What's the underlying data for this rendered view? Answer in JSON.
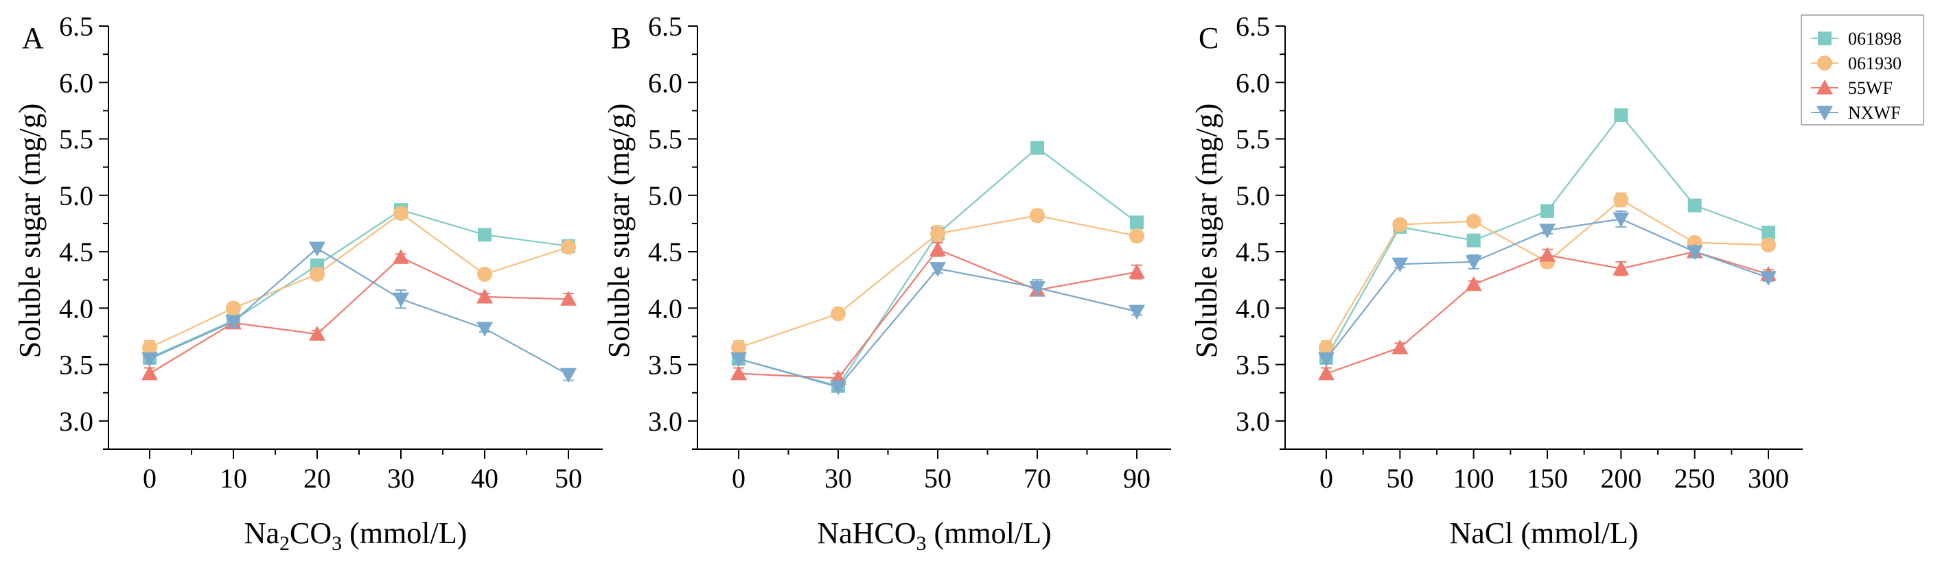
{
  "chart_data": [
    {
      "type": "line",
      "panel_label": "A",
      "xlabel": "Na2CO3 (mmol/L)",
      "xlabel_parts": {
        "pre": "Na",
        "sub": "2",
        "mid": "CO",
        "sub2": "3",
        "post": " (mmol/L)"
      },
      "ylabel": "Soluble sugar (mg/g)",
      "x": [
        0,
        10,
        20,
        30,
        40,
        50
      ],
      "x_tick_labels": [
        "0",
        "10",
        "20",
        "30",
        "40",
        "50"
      ],
      "ylim": [
        2.75,
        6.5
      ],
      "y_tick_labels": [
        "3.0",
        "3.5",
        "4.0",
        "4.5",
        "5.0",
        "5.5",
        "6.0",
        "6.5"
      ],
      "series": [
        {
          "name": "061898",
          "values": [
            3.56,
            3.89,
            4.38,
            4.87,
            4.65,
            4.55
          ],
          "errors": [
            0.04,
            0.03,
            0.04,
            0.03,
            0.03,
            0.04
          ]
        },
        {
          "name": "061930",
          "values": [
            3.65,
            4.0,
            4.3,
            4.84,
            4.3,
            4.54
          ],
          "errors": [
            0.06,
            0.03,
            0.05,
            0.03,
            0.04,
            0.04
          ]
        },
        {
          "name": "55WF",
          "values": [
            3.42,
            3.87,
            3.77,
            4.45,
            4.1,
            4.08
          ],
          "errors": [
            0.05,
            0.03,
            0.03,
            0.03,
            0.03,
            0.05
          ]
        },
        {
          "name": "NXWF",
          "values": [
            3.55,
            3.88,
            4.53,
            4.08,
            3.82,
            3.41
          ],
          "errors": [
            0.04,
            0.05,
            0.03,
            0.08,
            0.03,
            0.05
          ]
        }
      ]
    },
    {
      "type": "line",
      "panel_label": "B",
      "xlabel": "NaHCO3 (mmol/L)",
      "xlabel_parts": {
        "pre": "NaHCO",
        "sub": "3",
        "mid": "",
        "sub2": "",
        "post": " (mmol/L)"
      },
      "ylabel": "Soluble sugar (mg/g)",
      "x": [
        0,
        30,
        50,
        70,
        90
      ],
      "x_tick_labels": [
        "0",
        "30",
        "50",
        "70",
        "90"
      ],
      "ylim": [
        2.75,
        6.5
      ],
      "y_tick_labels": [
        "3.0",
        "3.5",
        "4.0",
        "4.5",
        "5.0",
        "5.5",
        "6.0",
        "6.5"
      ],
      "series": [
        {
          "name": "061898",
          "values": [
            3.55,
            3.31,
            4.66,
            5.42,
            4.76
          ],
          "errors": [
            0.04,
            0.03,
            0.04,
            0.05,
            0.04
          ]
        },
        {
          "name": "061930",
          "values": [
            3.65,
            3.95,
            4.66,
            4.82,
            4.64
          ],
          "errors": [
            0.06,
            0.03,
            0.07,
            0.05,
            0.05
          ]
        },
        {
          "name": "55WF",
          "values": [
            3.42,
            3.38,
            4.52,
            4.16,
            4.32
          ],
          "errors": [
            0.05,
            0.04,
            0.06,
            0.05,
            0.06
          ]
        },
        {
          "name": "NXWF",
          "values": [
            3.55,
            3.3,
            4.35,
            4.18,
            3.97
          ],
          "errors": [
            0.04,
            0.03,
            0.04,
            0.07,
            0.03
          ]
        }
      ]
    },
    {
      "type": "line",
      "panel_label": "C",
      "xlabel": "NaCl (mmol/L)",
      "xlabel_parts": {
        "pre": "NaCl",
        "sub": "",
        "mid": "",
        "sub2": "",
        "post": " (mmol/L)"
      },
      "ylabel": "Soluble sugar (mg/g)",
      "x": [
        0,
        50,
        100,
        150,
        200,
        250,
        300
      ],
      "x_tick_labels": [
        "0",
        "50",
        "100",
        "150",
        "200",
        "250",
        "300"
      ],
      "ylim": [
        2.75,
        6.5
      ],
      "y_tick_labels": [
        "3.0",
        "3.5",
        "4.0",
        "4.5",
        "5.0",
        "5.5",
        "6.0",
        "6.5"
      ],
      "series": [
        {
          "name": "061898",
          "values": [
            3.56,
            4.72,
            4.6,
            4.86,
            5.71,
            4.91,
            4.67
          ],
          "errors": [
            0.04,
            0.04,
            0.03,
            0.03,
            0.04,
            0.05,
            0.05
          ]
        },
        {
          "name": "061930",
          "values": [
            3.65,
            4.74,
            4.77,
            4.41,
            4.96,
            4.58,
            4.56
          ],
          "errors": [
            0.06,
            0.04,
            0.04,
            0.05,
            0.06,
            0.05,
            0.04
          ]
        },
        {
          "name": "55WF",
          "values": [
            3.42,
            3.65,
            4.21,
            4.47,
            4.35,
            4.5,
            4.3
          ],
          "errors": [
            0.05,
            0.04,
            0.03,
            0.05,
            0.06,
            0.04,
            0.04
          ]
        },
        {
          "name": "NXWF",
          "values": [
            3.55,
            4.39,
            4.41,
            4.69,
            4.79,
            4.5,
            4.27
          ],
          "errors": [
            0.04,
            0.03,
            0.06,
            0.03,
            0.07,
            0.05,
            0.03
          ]
        }
      ]
    }
  ],
  "legend": {
    "placement": "top-right",
    "items": [
      {
        "name": "061898",
        "marker": "square",
        "color": "#7ecbc3"
      },
      {
        "name": "061930",
        "marker": "circle",
        "color": "#f7bf7f"
      },
      {
        "name": "55WF",
        "marker": "triangle-up",
        "color": "#ee7a6e"
      },
      {
        "name": "NXWF",
        "marker": "triangle-down",
        "color": "#7aa8cc"
      }
    ]
  }
}
